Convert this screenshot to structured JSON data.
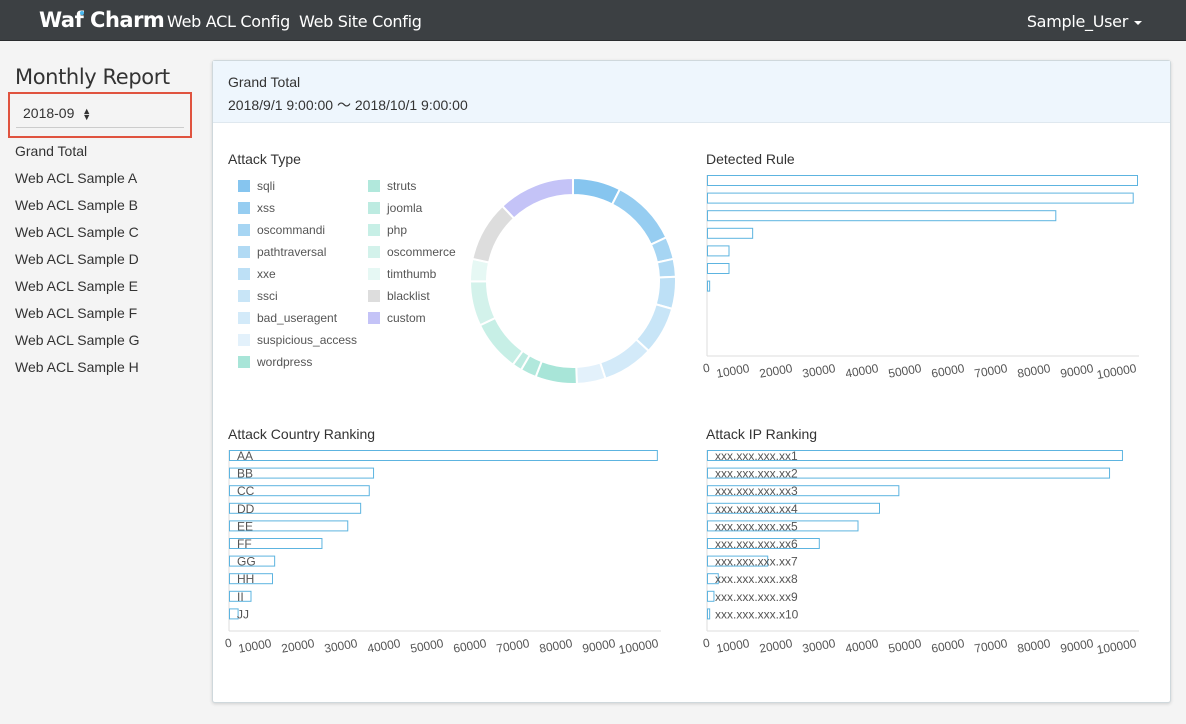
{
  "navbar": {
    "brand": "Waf Charm",
    "links": [
      "Web ACL Config",
      "Web Site Config"
    ],
    "user": "Sample_User"
  },
  "sidebar": {
    "title": "Monthly Report",
    "month": "2018-09",
    "items": [
      "Grand Total",
      "Web ACL Sample A",
      "Web ACL Sample B",
      "Web ACL Sample C",
      "Web ACL Sample D",
      "Web ACL Sample E",
      "Web ACL Sample F",
      "Web ACL Sample G",
      "Web ACL Sample H"
    ]
  },
  "report": {
    "title": "Grand Total",
    "period": "2018/9/1 9:00:00 〜 2018/10/1 9:00:00"
  },
  "colors": {
    "bar_stroke": "#5db4e0",
    "accent_border": "#e0533f"
  },
  "chart_data": [
    {
      "id": "attack-type",
      "type": "pie",
      "title": "Attack Type",
      "labels": [
        "sqli",
        "xss",
        "oscommandi",
        "pathtraversal",
        "xxe",
        "ssci",
        "bad_useragent",
        "suspicious_access",
        "wordpress",
        "struts",
        "joomla",
        "php",
        "oscommerce",
        "timthumb",
        "blacklist",
        "custom"
      ],
      "colors": [
        "#86c5ef",
        "#96cdf1",
        "#a6d5f3",
        "#b1daf4",
        "#bde0f6",
        "#c8e5f7",
        "#d3eaf9",
        "#e3f1fb",
        "#a8e5d8",
        "#b1e8dc",
        "#bdebe1",
        "#c7efe6",
        "#d3f2eb",
        "#e6f8f4",
        "#dddddd",
        "#c4c3f7"
      ],
      "values": [
        7.5,
        10.5,
        3.5,
        2.8,
        5.0,
        7.5,
        8.0,
        4.5,
        6.5,
        2.5,
        1.5,
        8.0,
        7.0,
        3.5,
        9.5,
        12.0
      ]
    },
    {
      "id": "detected-rule",
      "type": "bar",
      "title": "Detected Rule",
      "categories": [
        "",
        "",
        "",
        "",
        "",
        "",
        "",
        "",
        "",
        ""
      ],
      "values": [
        100000,
        99000,
        81000,
        10500,
        5000,
        5000,
        500,
        0,
        0,
        0
      ],
      "xlim": [
        0,
        100000
      ],
      "ticks": [
        "0",
        "10000",
        "20000",
        "30000",
        "40000",
        "50000",
        "60000",
        "70000",
        "80000",
        "90000",
        "100000"
      ]
    },
    {
      "id": "country-ranking",
      "type": "bar",
      "title": "Attack Country Ranking",
      "categories": [
        "AA",
        "BB",
        "CC",
        "DD",
        "EE",
        "FF",
        "GG",
        "HH",
        "II",
        "JJ"
      ],
      "values": [
        99500,
        33500,
        32500,
        30500,
        27500,
        21500,
        10500,
        10000,
        5000,
        2000
      ],
      "xlim": [
        0,
        100000
      ],
      "ticks": [
        "0",
        "10000",
        "20000",
        "30000",
        "40000",
        "50000",
        "60000",
        "70000",
        "80000",
        "90000",
        "100000"
      ]
    },
    {
      "id": "ip-ranking",
      "type": "bar",
      "title": "Attack IP Ranking",
      "categories": [
        "xxx.xxx.xxx.xx1",
        "xxx.xxx.xxx.xx2",
        "xxx.xxx.xxx.xx3",
        "xxx.xxx.xxx.xx4",
        "xxx.xxx.xxx.xx5",
        "xxx.xxx.xxx.xx6",
        "xxx.xxx.xxx.xx7",
        "xxx.xxx.xxx.xx8",
        "xxx.xxx.xxx.xx9",
        "xxx.xxx.xxx.x10"
      ],
      "values": [
        96500,
        93500,
        44500,
        40000,
        35000,
        26000,
        14000,
        2500,
        1500,
        500
      ],
      "xlim": [
        0,
        100000
      ],
      "ticks": [
        "0",
        "10000",
        "20000",
        "30000",
        "40000",
        "50000",
        "60000",
        "70000",
        "80000",
        "90000",
        "100000"
      ]
    }
  ]
}
